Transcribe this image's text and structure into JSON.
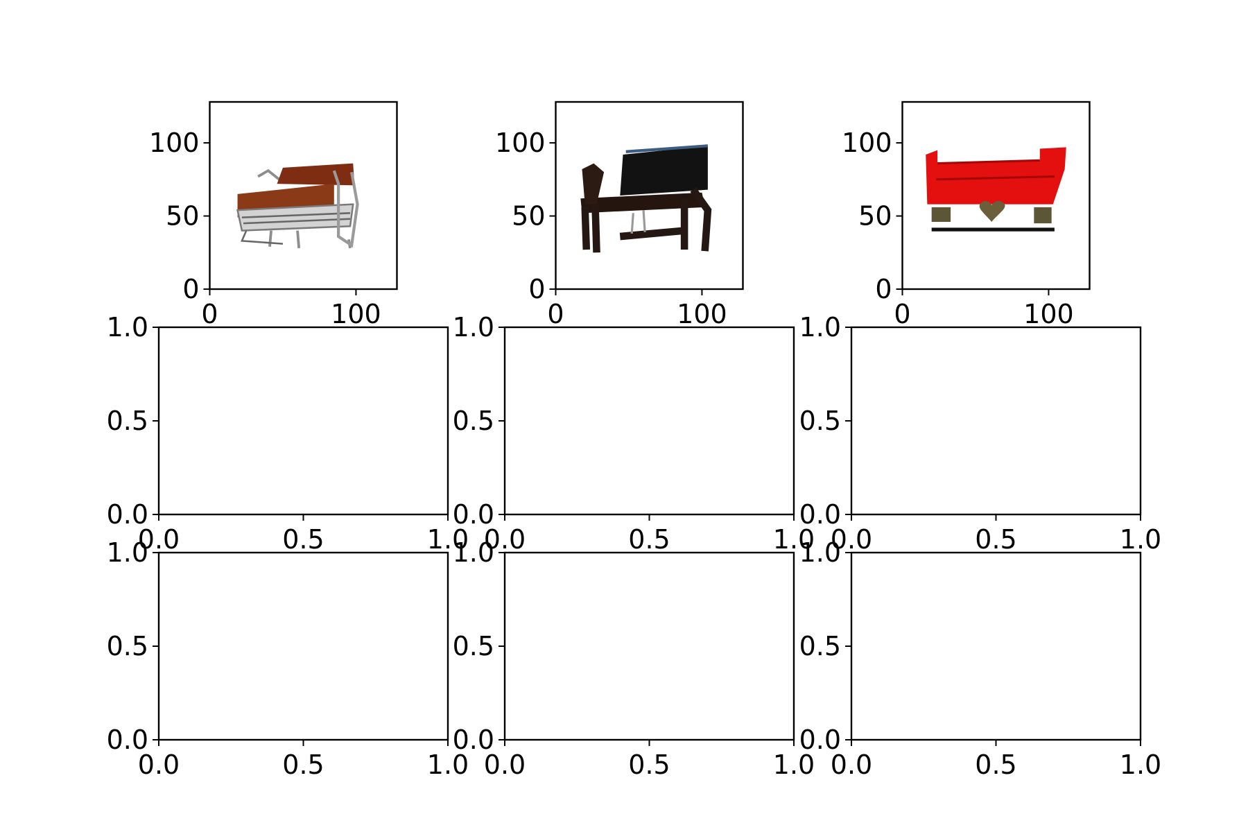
{
  "figure": {
    "background": "#ffffff",
    "axis_color": "#000000",
    "rows": 3,
    "cols": 3
  },
  "chart_data": [
    {
      "type": "image",
      "grid_position": "row 1, col 1",
      "image_content": "chair-icon",
      "image_description": "armchair with rust-brown cushions on a chrome tubular frame",
      "xlim": [
        0,
        128
      ],
      "ylim": [
        128,
        0
      ],
      "xticks": [
        0,
        100
      ],
      "xtick_labels": [
        "0",
        "100"
      ],
      "yticks": [
        0,
        50,
        100
      ],
      "ytick_labels": [
        "0",
        "50",
        "100"
      ]
    },
    {
      "type": "image",
      "grid_position": "row 1, col 2",
      "image_content": "chair-icon",
      "image_description": "dark wooden armchair with black cushions",
      "xlim": [
        0,
        128
      ],
      "ylim": [
        128,
        0
      ],
      "xticks": [
        0,
        100
      ],
      "xtick_labels": [
        "0",
        "100"
      ],
      "yticks": [
        0,
        50,
        100
      ],
      "ytick_labels": [
        "0",
        "50",
        "100"
      ]
    },
    {
      "type": "image",
      "grid_position": "row 1, col 3",
      "image_content": "sofa-icon",
      "image_description": "red sofa on an ornamental base with a heart motif",
      "xlim": [
        0,
        128
      ],
      "ylim": [
        128,
        0
      ],
      "xticks": [
        0,
        100
      ],
      "xtick_labels": [
        "0",
        "100"
      ],
      "yticks": [
        0,
        50,
        100
      ],
      "ytick_labels": [
        "0",
        "50",
        "100"
      ]
    },
    {
      "type": "empty",
      "grid_position": "row 2, col 1",
      "xlim": [
        0,
        1
      ],
      "ylim": [
        0,
        1
      ],
      "xticks": [
        0,
        0.5,
        1
      ],
      "xtick_labels": [
        "0.0",
        "0.5",
        "1.0"
      ],
      "yticks": [
        0,
        0.5,
        1
      ],
      "ytick_labels": [
        "0.0",
        "0.5",
        "1.0"
      ]
    },
    {
      "type": "empty",
      "grid_position": "row 2, col 2",
      "xlim": [
        0,
        1
      ],
      "ylim": [
        0,
        1
      ],
      "xticks": [
        0,
        0.5,
        1
      ],
      "xtick_labels": [
        "0.0",
        "0.5",
        "1.0"
      ],
      "yticks": [
        0,
        0.5,
        1
      ],
      "ytick_labels": [
        "0.0",
        "0.5",
        "1.0"
      ]
    },
    {
      "type": "empty",
      "grid_position": "row 2, col 3",
      "xlim": [
        0,
        1
      ],
      "ylim": [
        0,
        1
      ],
      "xticks": [
        0,
        0.5,
        1
      ],
      "xtick_labels": [
        "0.0",
        "0.5",
        "1.0"
      ],
      "yticks": [
        0,
        0.5,
        1
      ],
      "ytick_labels": [
        "0.0",
        "0.5",
        "1.0"
      ]
    },
    {
      "type": "empty",
      "grid_position": "row 3, col 1",
      "xlim": [
        0,
        1
      ],
      "ylim": [
        0,
        1
      ],
      "xticks": [
        0,
        0.5,
        1
      ],
      "xtick_labels": [
        "0.0",
        "0.5",
        "1.0"
      ],
      "yticks": [
        0,
        0.5,
        1
      ],
      "ytick_labels": [
        "0.0",
        "0.5",
        "1.0"
      ]
    },
    {
      "type": "empty",
      "grid_position": "row 3, col 2",
      "xlim": [
        0,
        1
      ],
      "ylim": [
        0,
        1
      ],
      "xticks": [
        0,
        0.5,
        1
      ],
      "xtick_labels": [
        "0.0",
        "0.5",
        "1.0"
      ],
      "yticks": [
        0,
        0.5,
        1
      ],
      "ytick_labels": [
        "0.0",
        "0.5",
        "1.0"
      ]
    },
    {
      "type": "empty",
      "grid_position": "row 3, col 3",
      "xlim": [
        0,
        1
      ],
      "ylim": [
        0,
        1
      ],
      "xticks": [
        0,
        0.5,
        1
      ],
      "xtick_labels": [
        "0.0",
        "0.5",
        "1.0"
      ],
      "yticks": [
        0,
        0.5,
        1
      ],
      "ytick_labels": [
        "0.0",
        "0.5",
        "1.0"
      ]
    }
  ]
}
